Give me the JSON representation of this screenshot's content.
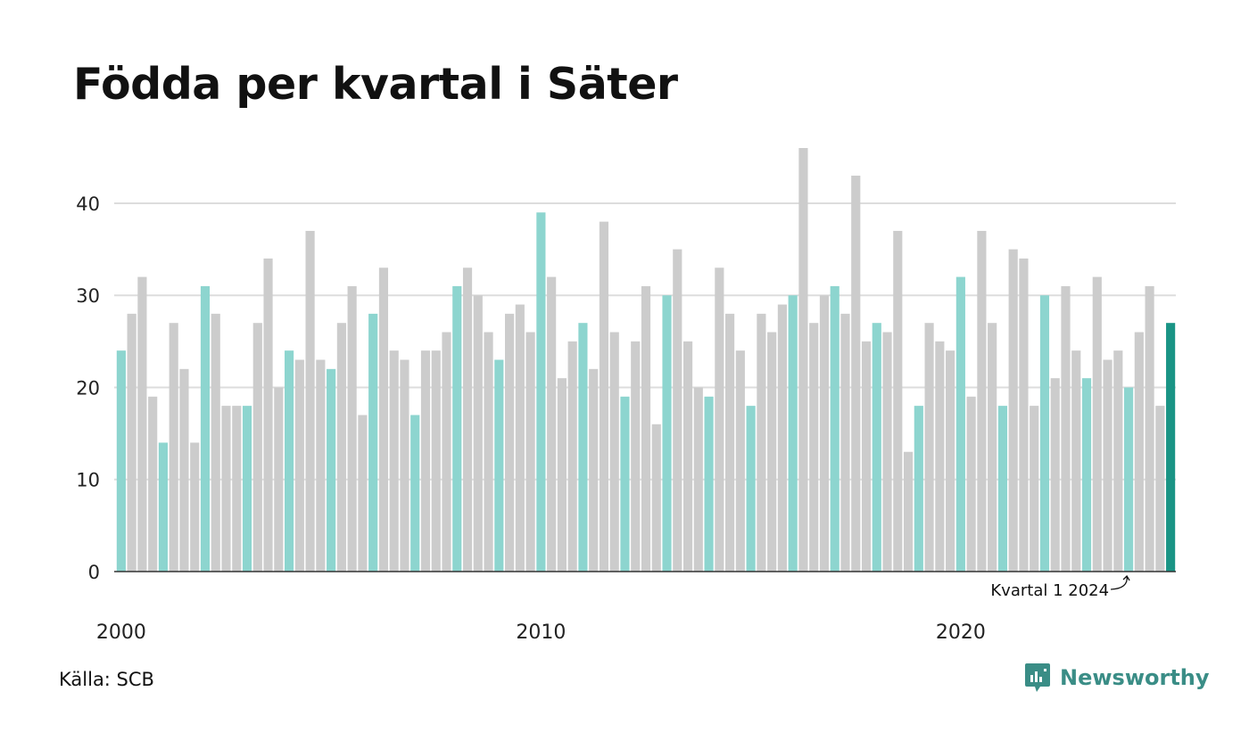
{
  "title": "Födda per kvartal i Säter",
  "source": "Källa: SCB",
  "brand": {
    "name": "Newsworthy",
    "icon": "newsworthy-logo-icon"
  },
  "colors": {
    "q1": "#8dd5cf",
    "other": "#cccccc",
    "latest": "#1a9485",
    "grid": "#dddddd",
    "axis": "#333333",
    "brand": "#3a8d86"
  },
  "chart_data": {
    "type": "bar",
    "title": "Födda per kvartal i Säter",
    "xlabel": "",
    "ylabel": "",
    "ylim": [
      0,
      46
    ],
    "yticks": [
      0,
      10,
      20,
      30,
      40
    ],
    "xtick_labels": [
      "2000",
      "2010",
      "2020"
    ],
    "grid": true,
    "annotation": {
      "text": "Kvartal 1 2024",
      "target": "2024 Q1"
    },
    "start_year": 2000,
    "series": [
      {
        "values": [
          24,
          28,
          32,
          19,
          14,
          27,
          22,
          14,
          31,
          28,
          18,
          18,
          18,
          27,
          34,
          20,
          24,
          23,
          37,
          23,
          22,
          27,
          31,
          17,
          28,
          33,
          24,
          23,
          17,
          24,
          24,
          26,
          31,
          33,
          30,
          26,
          23,
          28,
          29,
          26,
          39,
          32,
          21,
          25,
          27,
          22,
          38,
          26,
          19,
          25,
          31,
          16,
          30,
          35,
          25,
          20,
          19,
          33,
          28,
          24,
          18,
          28,
          26,
          29,
          30,
          46,
          27,
          30,
          31,
          28,
          43,
          25,
          27,
          26,
          37,
          13,
          18,
          27,
          25,
          24,
          32,
          19,
          37,
          27,
          18,
          35,
          34,
          18,
          30,
          21,
          31,
          24,
          21,
          32,
          23,
          24,
          20,
          26,
          31,
          18,
          27
        ]
      }
    ]
  }
}
